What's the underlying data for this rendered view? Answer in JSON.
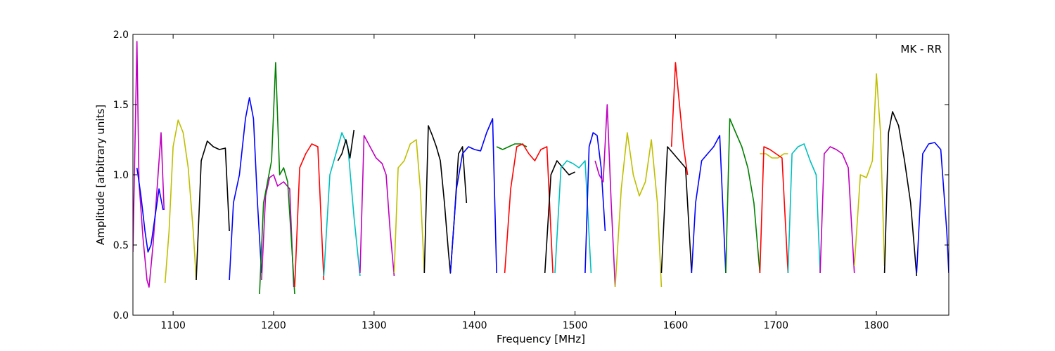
{
  "chart_data": {
    "type": "line",
    "xlabel": "Frequency [MHz]",
    "ylabel": "Amplitude [arbitrary units]",
    "xlim": [
      1060,
      1872
    ],
    "ylim": [
      0.0,
      2.0
    ],
    "xticks": [
      "1100",
      "1200",
      "1300",
      "1400",
      "1500",
      "1600",
      "1700",
      "1800"
    ],
    "yticks": [
      "0.0",
      "0.5",
      "1.0",
      "1.5",
      "2.0"
    ],
    "annotation": "MK - RR",
    "grid": false,
    "colors": {
      "b": "#0000ff",
      "g": "#008000",
      "r": "#ff0000",
      "c": "#00bfbf",
      "m": "#bf00bf",
      "y": "#bfbf00",
      "k": "#000000",
      "grey": "#bfbfbf"
    },
    "series": [
      {
        "color": "m",
        "x": [
          1060,
          1064,
          1066,
          1070,
          1074,
          1076,
          1080,
          1084,
          1088,
          1091
        ],
        "y": [
          0.45,
          1.95,
          0.95,
          0.55,
          0.25,
          0.2,
          0.5,
          0.9,
          1.3,
          0.75
        ]
      },
      {
        "color": "b",
        "x": [
          1064,
          1068,
          1072,
          1075,
          1078,
          1082,
          1086,
          1090
        ],
        "y": [
          1.05,
          0.85,
          0.6,
          0.45,
          0.5,
          0.7,
          0.9,
          0.75
        ]
      },
      {
        "color": "y",
        "x": [
          1092,
          1096,
          1100,
          1105,
          1110,
          1115,
          1120,
          1123
        ],
        "y": [
          0.23,
          0.6,
          1.2,
          1.39,
          1.3,
          1.05,
          0.6,
          0.25
        ]
      },
      {
        "color": "k",
        "x": [
          1123,
          1128,
          1134,
          1140,
          1146,
          1152,
          1156
        ],
        "y": [
          0.25,
          1.1,
          1.24,
          1.2,
          1.18,
          1.19,
          0.6
        ]
      },
      {
        "color": "b",
        "x": [
          1156,
          1160,
          1166,
          1172,
          1176,
          1180,
          1184,
          1188
        ],
        "y": [
          0.25,
          0.8,
          1.0,
          1.4,
          1.55,
          1.4,
          0.8,
          0.3
        ]
      },
      {
        "color": "m",
        "x": [
          1188,
          1192,
          1196,
          1200,
          1204,
          1210,
          1216,
          1220
        ],
        "y": [
          0.25,
          0.85,
          0.98,
          1.0,
          0.92,
          0.95,
          0.9,
          0.2
        ]
      },
      {
        "color": "g",
        "x": [
          1186,
          1190,
          1194,
          1198,
          1202,
          1206,
          1210,
          1214,
          1218,
          1221
        ],
        "y": [
          0.15,
          0.8,
          0.95,
          1.1,
          1.8,
          1.0,
          1.05,
          0.95,
          0.5,
          0.15
        ]
      },
      {
        "color": "r",
        "x": [
          1221,
          1226,
          1232,
          1238,
          1244,
          1250
        ],
        "y": [
          0.2,
          1.05,
          1.15,
          1.22,
          1.2,
          0.25
        ]
      },
      {
        "color": "c",
        "x": [
          1250,
          1256,
          1262,
          1268,
          1274,
          1280,
          1286
        ],
        "y": [
          0.28,
          1.0,
          1.15,
          1.3,
          1.2,
          0.7,
          0.28
        ]
      },
      {
        "color": "k",
        "x": [
          1264,
          1268,
          1272,
          1276,
          1280
        ],
        "y": [
          1.1,
          1.15,
          1.25,
          1.12,
          1.32
        ]
      },
      {
        "color": "m",
        "x": [
          1286,
          1290,
          1296,
          1302,
          1308,
          1312,
          1316,
          1320
        ],
        "y": [
          0.3,
          1.28,
          1.2,
          1.12,
          1.08,
          1.0,
          0.6,
          0.28
        ]
      },
      {
        "color": "y",
        "x": [
          1320,
          1324,
          1330,
          1336,
          1342,
          1346,
          1350
        ],
        "y": [
          0.3,
          1.05,
          1.1,
          1.22,
          1.25,
          0.9,
          0.3
        ]
      },
      {
        "color": "k",
        "x": [
          1350,
          1354,
          1358,
          1362,
          1366,
          1370,
          1374,
          1376,
          1380,
          1384,
          1388,
          1392
        ],
        "y": [
          0.3,
          1.35,
          1.28,
          1.2,
          1.1,
          0.8,
          0.45,
          0.3,
          0.7,
          1.15,
          1.2,
          0.8
        ]
      },
      {
        "color": "b",
        "x": [
          1376,
          1382,
          1388,
          1394,
          1400,
          1406,
          1412,
          1418,
          1422
        ],
        "y": [
          0.3,
          0.9,
          1.15,
          1.2,
          1.18,
          1.17,
          1.3,
          1.4,
          0.3
        ]
      },
      {
        "color": "g",
        "x": [
          1422,
          1428,
          1434,
          1440,
          1446,
          1452
        ],
        "y": [
          1.2,
          1.18,
          1.2,
          1.22,
          1.22,
          1.2
        ]
      },
      {
        "color": "r",
        "x": [
          1430,
          1436,
          1442,
          1448,
          1454,
          1460,
          1466,
          1472,
          1478
        ],
        "y": [
          0.3,
          0.9,
          1.2,
          1.22,
          1.15,
          1.1,
          1.18,
          1.2,
          0.3
        ]
      },
      {
        "color": "k",
        "x": [
          1470,
          1476,
          1482,
          1488,
          1494,
          1500
        ],
        "y": [
          0.3,
          1.0,
          1.1,
          1.05,
          1.0,
          1.02
        ]
      },
      {
        "color": "c",
        "x": [
          1480,
          1486,
          1492,
          1498,
          1504,
          1510,
          1516
        ],
        "y": [
          0.3,
          1.05,
          1.1,
          1.08,
          1.05,
          1.1,
          0.3
        ]
      },
      {
        "color": "b",
        "x": [
          1510,
          1514,
          1518,
          1522,
          1526,
          1530
        ],
        "y": [
          0.3,
          1.2,
          1.3,
          1.28,
          1.05,
          0.6
        ]
      },
      {
        "color": "m",
        "x": [
          1520,
          1524,
          1528,
          1532,
          1536,
          1540
        ],
        "y": [
          1.1,
          1.0,
          0.95,
          1.5,
          0.8,
          0.2
        ]
      },
      {
        "color": "y",
        "x": [
          1540,
          1546,
          1552,
          1558,
          1564,
          1570,
          1576,
          1582,
          1586
        ],
        "y": [
          0.2,
          0.9,
          1.3,
          1.0,
          0.85,
          0.95,
          1.25,
          0.8,
          0.2
        ]
      },
      {
        "color": "k",
        "x": [
          1586,
          1592,
          1598,
          1604,
          1610,
          1616
        ],
        "y": [
          0.3,
          1.2,
          1.15,
          1.1,
          1.05,
          0.3
        ]
      },
      {
        "color": "r",
        "x": [
          1596,
          1600,
          1604,
          1608,
          1612
        ],
        "y": [
          1.2,
          1.8,
          1.5,
          1.2,
          1.0
        ]
      },
      {
        "color": "b",
        "x": [
          1616,
          1620,
          1626,
          1632,
          1638,
          1644,
          1650
        ],
        "y": [
          0.3,
          0.8,
          1.1,
          1.15,
          1.2,
          1.28,
          0.3
        ]
      },
      {
        "color": "g",
        "x": [
          1650,
          1654,
          1660,
          1666,
          1672,
          1678,
          1684
        ],
        "y": [
          0.3,
          1.4,
          1.3,
          1.2,
          1.05,
          0.8,
          0.3
        ]
      },
      {
        "color": "y",
        "x": [
          1684,
          1690,
          1696,
          1702,
          1708,
          1712
        ],
        "y": [
          1.15,
          1.15,
          1.12,
          1.12,
          1.15,
          1.15
        ]
      },
      {
        "color": "r",
        "x": [
          1684,
          1688,
          1694,
          1700,
          1706,
          1712
        ],
        "y": [
          0.3,
          1.2,
          1.18,
          1.15,
          1.12,
          0.3
        ]
      },
      {
        "color": "c",
        "x": [
          1712,
          1716,
          1722,
          1728,
          1734,
          1740,
          1744
        ],
        "y": [
          0.3,
          1.15,
          1.2,
          1.22,
          1.1,
          1.0,
          0.3
        ]
      },
      {
        "color": "m",
        "x": [
          1744,
          1748,
          1754,
          1760,
          1766,
          1772,
          1778
        ],
        "y": [
          0.3,
          1.15,
          1.2,
          1.18,
          1.15,
          1.05,
          0.3
        ]
      },
      {
        "color": "y",
        "x": [
          1778,
          1784,
          1790,
          1796,
          1800,
          1804,
          1808
        ],
        "y": [
          0.35,
          1.0,
          0.98,
          1.1,
          1.72,
          1.3,
          0.35
        ]
      },
      {
        "color": "k",
        "x": [
          1808,
          1812,
          1816,
          1822,
          1828,
          1834,
          1840
        ],
        "y": [
          0.3,
          1.3,
          1.45,
          1.35,
          1.1,
          0.8,
          0.28
        ]
      },
      {
        "color": "b",
        "x": [
          1840,
          1846,
          1852,
          1858,
          1864,
          1870,
          1872
        ],
        "y": [
          0.3,
          1.15,
          1.22,
          1.23,
          1.18,
          0.6,
          0.3
        ]
      }
    ]
  }
}
